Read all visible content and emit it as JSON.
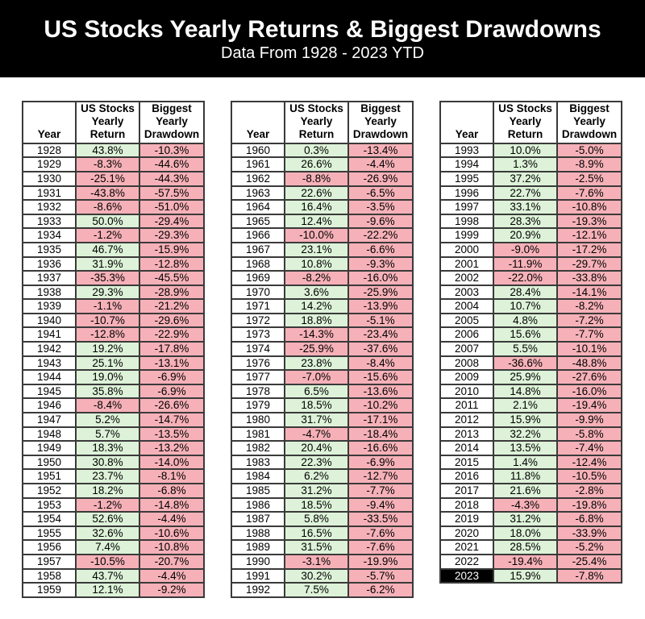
{
  "header": {
    "title": "US Stocks Yearly Returns & Biggest Drawdowns",
    "subtitle": "Data From 1928 - 2023 YTD"
  },
  "columns": {
    "year": "Year",
    "return": "US Stocks\nYearly\nReturn",
    "drawdown": "Biggest\nYearly\nDrawdown"
  },
  "colors": {
    "positive_cell_bg": "#ddf2d8",
    "negative_cell_bg": "#f6b1b8",
    "header_band_bg": "#000000",
    "header_band_text": "#ffffff",
    "table_border": "#3a3a3a",
    "highlight_year_bg": "#000000",
    "highlight_year_text": "#ffffff"
  },
  "chart_data": {
    "type": "table",
    "title": "US Stocks Yearly Returns & Biggest Drawdowns",
    "subtitle": "Data From 1928 - 2023 YTD",
    "columns": [
      "Year",
      "US Stocks Yearly Return",
      "Biggest Yearly Drawdown"
    ],
    "tables": [
      {
        "rows": [
          {
            "year": "1928",
            "ret": "43.8%",
            "dd": "-10.3%"
          },
          {
            "year": "1929",
            "ret": "-8.3%",
            "dd": "-44.6%"
          },
          {
            "year": "1930",
            "ret": "-25.1%",
            "dd": "-44.3%"
          },
          {
            "year": "1931",
            "ret": "-43.8%",
            "dd": "-57.5%"
          },
          {
            "year": "1932",
            "ret": "-8.6%",
            "dd": "-51.0%"
          },
          {
            "year": "1933",
            "ret": "50.0%",
            "dd": "-29.4%"
          },
          {
            "year": "1934",
            "ret": "-1.2%",
            "dd": "-29.3%"
          },
          {
            "year": "1935",
            "ret": "46.7%",
            "dd": "-15.9%"
          },
          {
            "year": "1936",
            "ret": "31.9%",
            "dd": "-12.8%"
          },
          {
            "year": "1937",
            "ret": "-35.3%",
            "dd": "-45.5%"
          },
          {
            "year": "1938",
            "ret": "29.3%",
            "dd": "-28.9%"
          },
          {
            "year": "1939",
            "ret": "-1.1%",
            "dd": "-21.2%"
          },
          {
            "year": "1940",
            "ret": "-10.7%",
            "dd": "-29.6%"
          },
          {
            "year": "1941",
            "ret": "-12.8%",
            "dd": "-22.9%"
          },
          {
            "year": "1942",
            "ret": "19.2%",
            "dd": "-17.8%"
          },
          {
            "year": "1943",
            "ret": "25.1%",
            "dd": "-13.1%"
          },
          {
            "year": "1944",
            "ret": "19.0%",
            "dd": "-6.9%"
          },
          {
            "year": "1945",
            "ret": "35.8%",
            "dd": "-6.9%"
          },
          {
            "year": "1946",
            "ret": "-8.4%",
            "dd": "-26.6%"
          },
          {
            "year": "1947",
            "ret": "5.2%",
            "dd": "-14.7%"
          },
          {
            "year": "1948",
            "ret": "5.7%",
            "dd": "-13.5%"
          },
          {
            "year": "1949",
            "ret": "18.3%",
            "dd": "-13.2%"
          },
          {
            "year": "1950",
            "ret": "30.8%",
            "dd": "-14.0%"
          },
          {
            "year": "1951",
            "ret": "23.7%",
            "dd": "-8.1%"
          },
          {
            "year": "1952",
            "ret": "18.2%",
            "dd": "-6.8%"
          },
          {
            "year": "1953",
            "ret": "-1.2%",
            "dd": "-14.8%"
          },
          {
            "year": "1954",
            "ret": "52.6%",
            "dd": "-4.4%"
          },
          {
            "year": "1955",
            "ret": "32.6%",
            "dd": "-10.6%"
          },
          {
            "year": "1956",
            "ret": "7.4%",
            "dd": "-10.8%"
          },
          {
            "year": "1957",
            "ret": "-10.5%",
            "dd": "-20.7%"
          },
          {
            "year": "1958",
            "ret": "43.7%",
            "dd": "-4.4%"
          },
          {
            "year": "1959",
            "ret": "12.1%",
            "dd": "-9.2%"
          }
        ]
      },
      {
        "rows": [
          {
            "year": "1960",
            "ret": "0.3%",
            "dd": "-13.4%"
          },
          {
            "year": "1961",
            "ret": "26.6%",
            "dd": "-4.4%"
          },
          {
            "year": "1962",
            "ret": "-8.8%",
            "dd": "-26.9%"
          },
          {
            "year": "1963",
            "ret": "22.6%",
            "dd": "-6.5%"
          },
          {
            "year": "1964",
            "ret": "16.4%",
            "dd": "-3.5%"
          },
          {
            "year": "1965",
            "ret": "12.4%",
            "dd": "-9.6%"
          },
          {
            "year": "1966",
            "ret": "-10.0%",
            "dd": "-22.2%"
          },
          {
            "year": "1967",
            "ret": "23.1%",
            "dd": "-6.6%"
          },
          {
            "year": "1968",
            "ret": "10.8%",
            "dd": "-9.3%"
          },
          {
            "year": "1969",
            "ret": "-8.2%",
            "dd": "-16.0%"
          },
          {
            "year": "1970",
            "ret": "3.6%",
            "dd": "-25.9%"
          },
          {
            "year": "1971",
            "ret": "14.2%",
            "dd": "-13.9%"
          },
          {
            "year": "1972",
            "ret": "18.8%",
            "dd": "-5.1%"
          },
          {
            "year": "1973",
            "ret": "-14.3%",
            "dd": "-23.4%"
          },
          {
            "year": "1974",
            "ret": "-25.9%",
            "dd": "-37.6%"
          },
          {
            "year": "1976",
            "ret": "23.8%",
            "dd": "-8.4%"
          },
          {
            "year": "1977",
            "ret": "-7.0%",
            "dd": "-15.6%"
          },
          {
            "year": "1978",
            "ret": "6.5%",
            "dd": "-13.6%"
          },
          {
            "year": "1979",
            "ret": "18.5%",
            "dd": "-10.2%"
          },
          {
            "year": "1980",
            "ret": "31.7%",
            "dd": "-17.1%"
          },
          {
            "year": "1981",
            "ret": "-4.7%",
            "dd": "-18.4%"
          },
          {
            "year": "1982",
            "ret": "20.4%",
            "dd": "-16.6%"
          },
          {
            "year": "1983",
            "ret": "22.3%",
            "dd": "-6.9%"
          },
          {
            "year": "1984",
            "ret": "6.2%",
            "dd": "-12.7%"
          },
          {
            "year": "1985",
            "ret": "31.2%",
            "dd": "-7.7%"
          },
          {
            "year": "1986",
            "ret": "18.5%",
            "dd": "-9.4%"
          },
          {
            "year": "1987",
            "ret": "5.8%",
            "dd": "-33.5%"
          },
          {
            "year": "1988",
            "ret": "16.5%",
            "dd": "-7.6%"
          },
          {
            "year": "1989",
            "ret": "31.5%",
            "dd": "-7.6%"
          },
          {
            "year": "1990",
            "ret": "-3.1%",
            "dd": "-19.9%"
          },
          {
            "year": "1991",
            "ret": "30.2%",
            "dd": "-5.7%"
          },
          {
            "year": "1992",
            "ret": "7.5%",
            "dd": "-6.2%"
          }
        ]
      },
      {
        "rows": [
          {
            "year": "1993",
            "ret": "10.0%",
            "dd": "-5.0%"
          },
          {
            "year": "1994",
            "ret": "1.3%",
            "dd": "-8.9%"
          },
          {
            "year": "1995",
            "ret": "37.2%",
            "dd": "-2.5%"
          },
          {
            "year": "1996",
            "ret": "22.7%",
            "dd": "-7.6%"
          },
          {
            "year": "1997",
            "ret": "33.1%",
            "dd": "-10.8%"
          },
          {
            "year": "1998",
            "ret": "28.3%",
            "dd": "-19.3%"
          },
          {
            "year": "1999",
            "ret": "20.9%",
            "dd": "-12.1%"
          },
          {
            "year": "2000",
            "ret": "-9.0%",
            "dd": "-17.2%"
          },
          {
            "year": "2001",
            "ret": "-11.9%",
            "dd": "-29.7%"
          },
          {
            "year": "2002",
            "ret": "-22.0%",
            "dd": "-33.8%"
          },
          {
            "year": "2003",
            "ret": "28.4%",
            "dd": "-14.1%"
          },
          {
            "year": "2004",
            "ret": "10.7%",
            "dd": "-8.2%"
          },
          {
            "year": "2005",
            "ret": "4.8%",
            "dd": "-7.2%"
          },
          {
            "year": "2006",
            "ret": "15.6%",
            "dd": "-7.7%"
          },
          {
            "year": "2007",
            "ret": "5.5%",
            "dd": "-10.1%"
          },
          {
            "year": "2008",
            "ret": "-36.6%",
            "dd": "-48.8%"
          },
          {
            "year": "2009",
            "ret": "25.9%",
            "dd": "-27.6%"
          },
          {
            "year": "2010",
            "ret": "14.8%",
            "dd": "-16.0%"
          },
          {
            "year": "2011",
            "ret": "2.1%",
            "dd": "-19.4%"
          },
          {
            "year": "2012",
            "ret": "15.9%",
            "dd": "-9.9%"
          },
          {
            "year": "2013",
            "ret": "32.2%",
            "dd": "-5.8%"
          },
          {
            "year": "2014",
            "ret": "13.5%",
            "dd": "-7.4%"
          },
          {
            "year": "2015",
            "ret": "1.4%",
            "dd": "-12.4%"
          },
          {
            "year": "2016",
            "ret": "11.8%",
            "dd": "-10.5%"
          },
          {
            "year": "2017",
            "ret": "21.6%",
            "dd": "-2.8%"
          },
          {
            "year": "2018",
            "ret": "-4.3%",
            "dd": "-19.8%"
          },
          {
            "year": "2019",
            "ret": "31.2%",
            "dd": "-6.8%"
          },
          {
            "year": "2020",
            "ret": "18.0%",
            "dd": "-33.9%"
          },
          {
            "year": "2021",
            "ret": "28.5%",
            "dd": "-5.2%"
          },
          {
            "year": "2022",
            "ret": "-19.4%",
            "dd": "-25.4%"
          },
          {
            "year": "2023",
            "ret": "15.9%",
            "dd": "-7.8%",
            "highlight": true
          }
        ]
      }
    ]
  }
}
